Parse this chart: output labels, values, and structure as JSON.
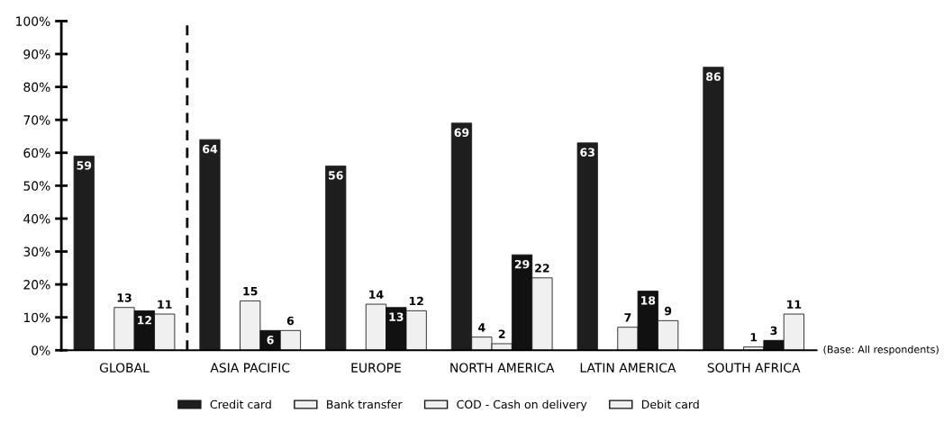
{
  "chart_data": {
    "type": "bar",
    "categories": [
      "GLOBAL",
      "ASIA PACIFIC",
      "EUROPE",
      "NORTH AMERICA",
      "LATIN AMERICA",
      "SOUTH AFRICA"
    ],
    "series": [
      {
        "name": "Credit card",
        "color": "#1e1e1e",
        "values": [
          59,
          64,
          56,
          69,
          63,
          86
        ],
        "value_labels": [
          "59",
          "64",
          "56",
          "69",
          "63",
          "86"
        ]
      },
      {
        "name": "Bank transfer",
        "color": "#f0f0f0",
        "values": [
          null,
          null,
          null,
          4,
          null,
          null
        ],
        "value_labels": [
          null,
          null,
          null,
          "4",
          null,
          null
        ]
      },
      {
        "name": "COD - Cash on delivery",
        "color": "#f0f0f0",
        "values": [
          13,
          15,
          14,
          2,
          7,
          1
        ],
        "value_labels": [
          "13",
          "15",
          "14",
          "2",
          "7",
          "1"
        ]
      },
      {
        "color": "#111111",
        "values": [
          12,
          6,
          13,
          29,
          18,
          3
        ],
        "value_labels": [
          "12",
          "6",
          "13",
          "29",
          "18",
          "3"
        ]
      },
      {
        "name": "Debit card",
        "color": "#f0f0f0",
        "values": [
          11,
          6,
          12,
          22,
          9,
          11
        ],
        "value_labels": [
          "11",
          "6",
          "12",
          "22",
          "9",
          "11"
        ]
      }
    ],
    "ylim": [
      0,
      100
    ],
    "yticks": [
      {
        "value": 0,
        "label": "0%"
      },
      {
        "value": 10,
        "label": "10%"
      },
      {
        "value": 20,
        "label": "20%"
      },
      {
        "value": 30,
        "label": "30%"
      },
      {
        "value": 40,
        "label": "40%"
      },
      {
        "value": 50,
        "label": "50%"
      },
      {
        "value": 60,
        "label": "60%"
      },
      {
        "value": 70,
        "label": "70%"
      },
      {
        "value": 80,
        "label": "80%"
      },
      {
        "value": 90,
        "label": "90%"
      },
      {
        "value": 100,
        "label": "100%"
      }
    ],
    "grid": false,
    "legend": "bottom",
    "annotations": [
      "(Base: All respondents)"
    ]
  }
}
